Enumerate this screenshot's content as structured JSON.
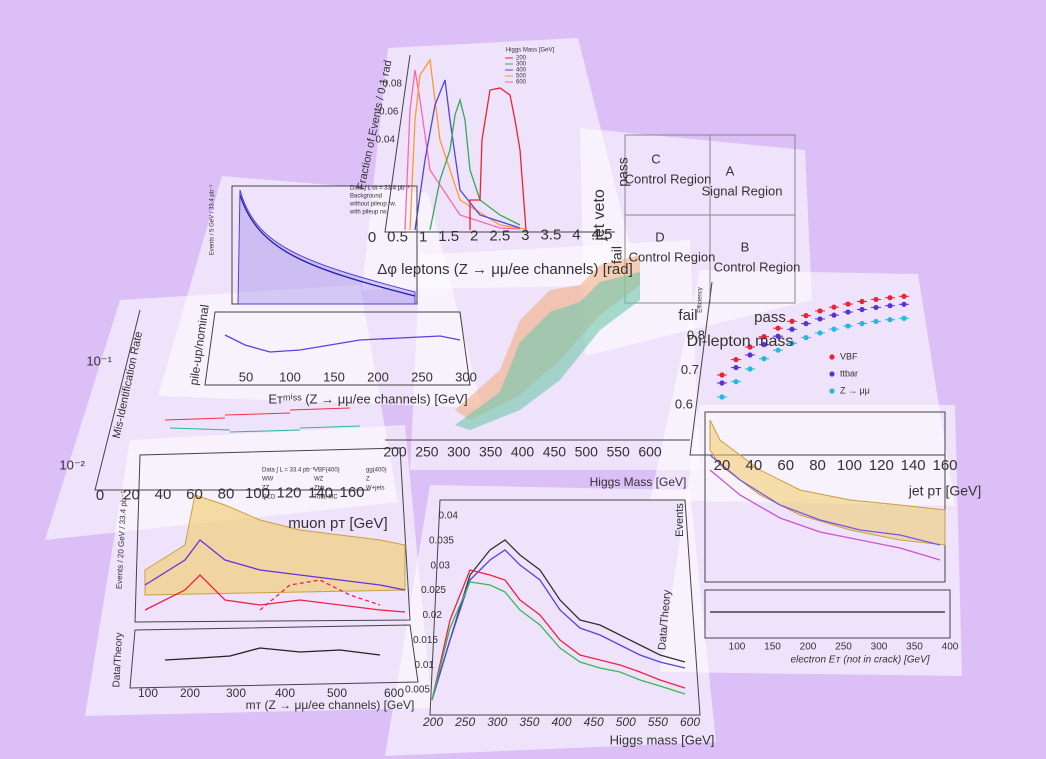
{
  "delta_phi": {
    "y_label": "Fraction of Events / 0.1 rad",
    "y_ticks": [
      "0.08",
      "0.06",
      "0.04"
    ],
    "legend_title": "Higgs Mass [GeV]",
    "legend": [
      "200",
      "300",
      "400",
      "500",
      "600"
    ],
    "x_ticks": [
      "0",
      "0.5",
      "1",
      "1.5",
      "2",
      "2.5",
      "3",
      "3.5",
      "4",
      "4.5"
    ],
    "x_label": "Δφ leptons (Z → μμ/ee channels) [rad]"
  },
  "abcd": {
    "regions": [
      {
        "letter": "C",
        "name": "Control Region"
      },
      {
        "letter": "A",
        "name": "Signal Region"
      },
      {
        "letter": "D",
        "name": "Control Region"
      },
      {
        "letter": "B",
        "name": "Control Region"
      }
    ],
    "y_axis": "jet veto",
    "y_pass": "pass",
    "y_fail": "fail",
    "x_fail": "fail",
    "x_pass": "pass",
    "x_label": "Di-lepton mass"
  },
  "met": {
    "y_label": "Events / 5 GeV / 33.4 pb⁻¹",
    "legend": [
      "Data ∫ L dt = 33.4 pb⁻¹",
      "Background",
      "without pileup rw.",
      "with pileup rw."
    ],
    "ratio_label": "pile-up/nominal",
    "x_ticks": [
      "50",
      "100",
      "150",
      "200",
      "250",
      "300"
    ],
    "x_label": "Eᴛᵐⁱˢˢ (Z → μμ/ee channels) [GeV]"
  },
  "misid": {
    "y_label": "Mis-Identification Rate",
    "y_ticks": [
      "10⁻¹",
      "10⁻²"
    ],
    "x_ticks": [
      "0",
      "20",
      "40",
      "60",
      "80",
      "100",
      "120",
      "140",
      "160"
    ],
    "x_label": "muon pᴛ [GeV]"
  },
  "efficiency": {
    "y_label": "Efficiency",
    "y_ticks": [
      "0.8",
      "0.7",
      "0.6"
    ],
    "legend": [
      "VBF",
      "ttbar",
      "Z → μμ"
    ],
    "x_ticks": [
      "20",
      "40",
      "60",
      "80",
      "100",
      "120",
      "140",
      "160"
    ],
    "x_label": "jet pᴛ [GeV]"
  },
  "higgs_band": {
    "x_ticks": [
      "200",
      "250",
      "300",
      "350",
      "400",
      "450",
      "500",
      "550",
      "600"
    ],
    "x_label": "Higgs Mass [GeV]"
  },
  "mt": {
    "y_label": "Events / 20 GeV / 33.4 pb⁻¹",
    "legend": [
      "Data ∫ L = 33.4 pb⁻¹",
      "VBF(400)",
      "gg(400)",
      "WW",
      "WZ",
      "Z",
      "ZZ",
      "Zbb",
      "W+jets",
      "QCD",
      "Total MC"
    ],
    "ratio_label": "Data/Theory",
    "x_ticks": [
      "100",
      "200",
      "300",
      "400",
      "500",
      "600"
    ],
    "x_label": "mᴛ (Z → μμ/ee channels) [GeV]"
  },
  "higgs_mass": {
    "y_ticks": [
      "0.04",
      "0.035",
      "0.03",
      "0.025",
      "0.02",
      "0.015",
      "0.01",
      "0.005"
    ],
    "x_ticks": [
      "200",
      "250",
      "300",
      "350",
      "400",
      "450",
      "500",
      "550",
      "600"
    ],
    "x_label": "Higgs mass [GeV]"
  },
  "electron": {
    "y_label": "Events",
    "ratio_label": "Data/Theory",
    "x_ticks": [
      "100",
      "150",
      "200",
      "250",
      "300",
      "350",
      "400"
    ],
    "x_label": "electron Eᴛ (not in crack) [GeV]"
  }
}
